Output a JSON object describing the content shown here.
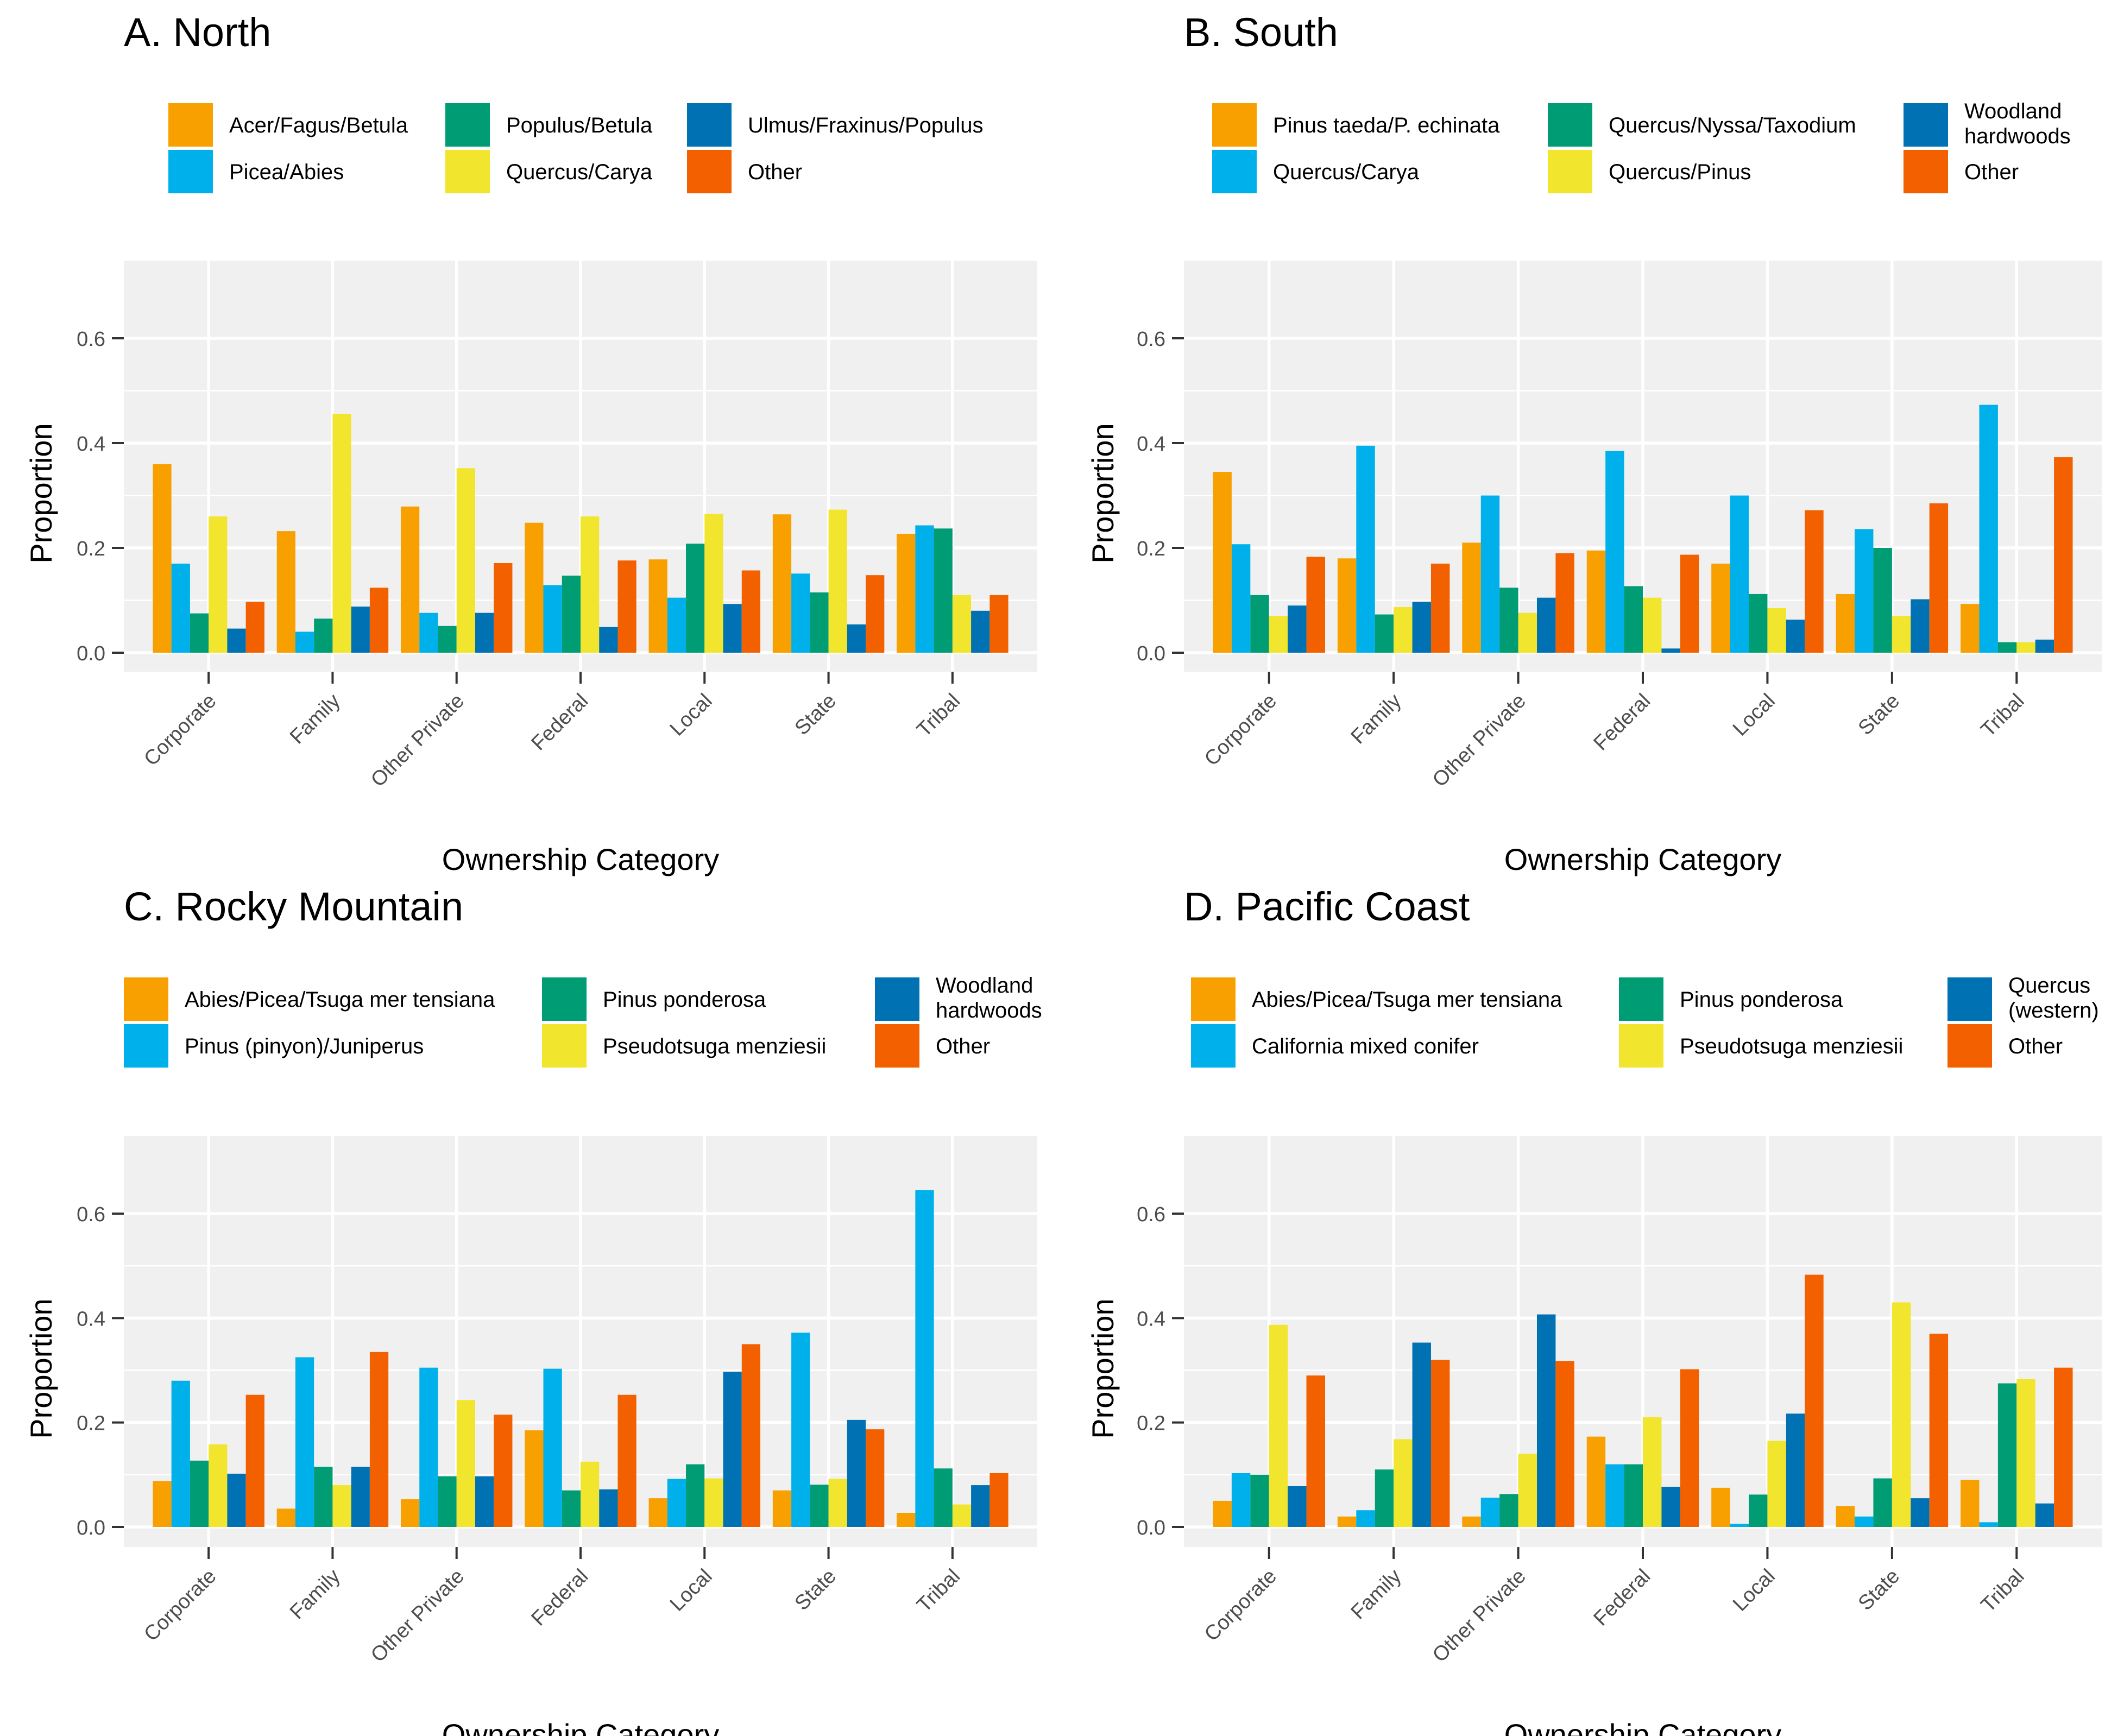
{
  "colors": {
    "orange": "#F8A000",
    "skyblue": "#00B0EA",
    "green": "#009C73",
    "yellow": "#F2E52D",
    "blue": "#0072B3",
    "vermilion": "#F26000",
    "panel_bg": "#F0F0F0",
    "grid": "#FFFFFF",
    "axis_text": "#4D4D4D"
  },
  "chart_data": [
    {
      "type": "bar",
      "title": "A. North",
      "xlabel": "Ownership Category",
      "ylabel": "Proportion",
      "ylim": [
        0,
        0.68
      ],
      "yticks": [
        "0.0",
        "0.2",
        "0.4",
        "0.6"
      ],
      "categories": [
        "Corporate",
        "Family",
        "Other Private",
        "Federal",
        "Local",
        "State",
        "Tribal"
      ],
      "series": [
        {
          "name": "Acer/Fagus/Betula",
          "color": "orange",
          "values": [
            0.36,
            0.232,
            0.279,
            0.248,
            0.178,
            0.264,
            0.227
          ]
        },
        {
          "name": "Picea/Abies",
          "color": "skyblue",
          "values": [
            0.17,
            0.04,
            0.076,
            0.129,
            0.105,
            0.151,
            0.243
          ]
        },
        {
          "name": "Populus/Betula",
          "color": "green",
          "values": [
            0.075,
            0.065,
            0.051,
            0.147,
            0.208,
            0.115,
            0.237
          ]
        },
        {
          "name": "Quercus/Carya",
          "color": "yellow",
          "values": [
            0.26,
            0.456,
            0.352,
            0.26,
            0.265,
            0.273,
            0.11
          ]
        },
        {
          "name": "Ulmus/Fraxinus/Populus",
          "color": "blue",
          "values": [
            0.046,
            0.088,
            0.076,
            0.049,
            0.093,
            0.054,
            0.08
          ]
        },
        {
          "name": "Other",
          "color": "vermilion",
          "values": [
            0.097,
            0.124,
            0.171,
            0.176,
            0.157,
            0.148,
            0.11
          ]
        }
      ],
      "legend": {
        "placement": "top",
        "columns": [
          [
            "Acer/Fagus/Betula",
            "Picea/Abies"
          ],
          [
            "Populus/Betula",
            "Quercus/Carya"
          ],
          [
            "Ulmus/Fraxinus/Populus",
            "Other"
          ]
        ]
      }
    },
    {
      "type": "bar",
      "title": "B. South",
      "xlabel": "Ownership Category",
      "ylabel": "Proportion",
      "ylim": [
        0,
        0.68
      ],
      "yticks": [
        "0.0",
        "0.2",
        "0.4",
        "0.6"
      ],
      "categories": [
        "Corporate",
        "Family",
        "Other Private",
        "Federal",
        "Local",
        "State",
        "Tribal"
      ],
      "series": [
        {
          "name": "Pinus taeda/P. echinata",
          "color": "orange",
          "values": [
            0.345,
            0.18,
            0.21,
            0.195,
            0.17,
            0.112,
            0.093
          ]
        },
        {
          "name": "Quercus/Carya",
          "color": "skyblue",
          "values": [
            0.207,
            0.395,
            0.3,
            0.385,
            0.3,
            0.236,
            0.473
          ]
        },
        {
          "name": "Quercus/Nyssa/Taxodium",
          "color": "green",
          "values": [
            0.11,
            0.073,
            0.124,
            0.127,
            0.112,
            0.2,
            0.02
          ]
        },
        {
          "name": "Quercus/Pinus",
          "color": "yellow",
          "values": [
            0.07,
            0.087,
            0.076,
            0.105,
            0.085,
            0.07,
            0.02
          ]
        },
        {
          "name": "Woodland hardwoods",
          "color": "blue",
          "values": [
            0.09,
            0.097,
            0.105,
            0.008,
            0.063,
            0.102,
            0.025
          ]
        },
        {
          "name": "Other",
          "color": "vermilion",
          "values": [
            0.183,
            0.17,
            0.19,
            0.187,
            0.272,
            0.285,
            0.373
          ]
        }
      ],
      "legend": {
        "placement": "top",
        "columns": [
          [
            "Pinus taeda/P. echinata",
            "Quercus/Carya"
          ],
          [
            "Quercus/Nyssa/Taxodium",
            "Quercus/Pinus"
          ],
          [
            "Woodland hardwoods",
            "Other"
          ]
        ]
      }
    },
    {
      "type": "bar",
      "title": "C. Rocky Mountain",
      "xlabel": "Ownership Category",
      "ylabel": "Proportion",
      "ylim": [
        0,
        0.68
      ],
      "yticks": [
        "0.0",
        "0.2",
        "0.4",
        "0.6"
      ],
      "categories": [
        "Corporate",
        "Family",
        "Other Private",
        "Federal",
        "Local",
        "State",
        "Tribal"
      ],
      "series": [
        {
          "name": "Abies/Picea/Tsuga mer tensiana",
          "color": "orange",
          "values": [
            0.088,
            0.035,
            0.053,
            0.185,
            0.055,
            0.07,
            0.027
          ]
        },
        {
          "name": "Pinus (pinyon)/Juniperus",
          "color": "skyblue",
          "values": [
            0.28,
            0.325,
            0.305,
            0.303,
            0.092,
            0.372,
            0.645
          ]
        },
        {
          "name": "Pinus ponderosa",
          "color": "green",
          "values": [
            0.127,
            0.115,
            0.097,
            0.07,
            0.12,
            0.081,
            0.112
          ]
        },
        {
          "name": "Pseudotsuga menziesii",
          "color": "yellow",
          "values": [
            0.158,
            0.08,
            0.243,
            0.125,
            0.093,
            0.092,
            0.043
          ]
        },
        {
          "name": "Woodland hardwoods",
          "color": "blue",
          "values": [
            0.102,
            0.115,
            0.097,
            0.072,
            0.297,
            0.205,
            0.08
          ]
        },
        {
          "name": "Other",
          "color": "vermilion",
          "values": [
            0.253,
            0.335,
            0.215,
            0.253,
            0.35,
            0.187,
            0.103
          ]
        }
      ],
      "legend": {
        "placement": "top",
        "columns": [
          [
            "Abies/Picea/Tsuga mer tensiana",
            "Pinus (pinyon)/Juniperus"
          ],
          [
            "Pinus ponderosa",
            "Pseudotsuga menziesii"
          ],
          [
            "Woodland hardwoods",
            "Other"
          ]
        ]
      }
    },
    {
      "type": "bar",
      "title": "D. Pacific Coast",
      "xlabel": "Ownership Category",
      "ylabel": "Proportion",
      "ylim": [
        0,
        0.68
      ],
      "yticks": [
        "0.0",
        "0.2",
        "0.4",
        "0.6"
      ],
      "categories": [
        "Corporate",
        "Family",
        "Other Private",
        "Federal",
        "Local",
        "State",
        "Tribal"
      ],
      "series": [
        {
          "name": "Abies/Picea/Tsuga mer tensiana",
          "color": "orange",
          "values": [
            0.05,
            0.02,
            0.02,
            0.173,
            0.075,
            0.04,
            0.09
          ]
        },
        {
          "name": "California mixed conifer",
          "color": "skyblue",
          "values": [
            0.103,
            0.032,
            0.056,
            0.12,
            0.006,
            0.02,
            0.009
          ]
        },
        {
          "name": "Pinus ponderosa",
          "color": "green",
          "values": [
            0.1,
            0.11,
            0.063,
            0.12,
            0.062,
            0.093,
            0.275
          ]
        },
        {
          "name": "Pseudotsuga menziesii",
          "color": "yellow",
          "values": [
            0.387,
            0.168,
            0.14,
            0.21,
            0.165,
            0.43,
            0.283
          ]
        },
        {
          "name": "Quercus (western)",
          "color": "blue",
          "values": [
            0.078,
            0.353,
            0.407,
            0.077,
            0.217,
            0.055,
            0.045
          ]
        },
        {
          "name": "Other",
          "color": "vermilion",
          "values": [
            0.29,
            0.32,
            0.318,
            0.302,
            0.483,
            0.37,
            0.305
          ]
        }
      ],
      "legend": {
        "placement": "top",
        "columns": [
          [
            "Abies/Picea/Tsuga mer tensiana",
            "California mixed conifer"
          ],
          [
            "Pinus ponderosa",
            "Pseudotsuga menziesii"
          ],
          [
            "Quercus (western)",
            "Other"
          ]
        ]
      }
    }
  ]
}
